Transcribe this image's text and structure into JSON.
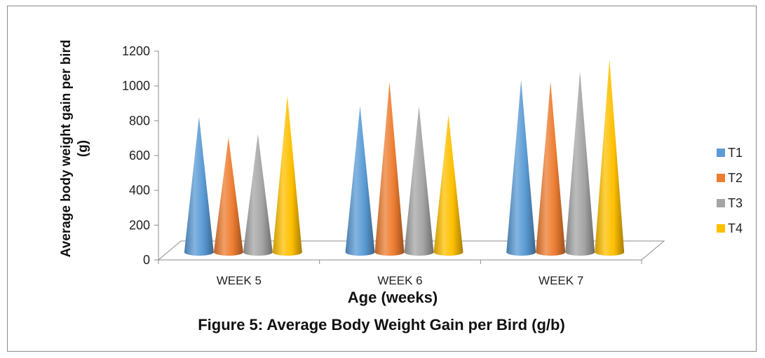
{
  "chart_data": {
    "type": "bar",
    "style": "3d-cone",
    "title": "Figure 5: Average Body Weight Gain per Bird (g/b)",
    "xlabel": "Age (weeks)",
    "ylabel_line1": "Average body weight gain per bird",
    "ylabel_line2": "(g)",
    "categories": [
      "WEEK 5",
      "WEEK 6",
      "WEEK 7"
    ],
    "ylim": [
      0,
      1200
    ],
    "yticks": [
      "0",
      "200",
      "400",
      "600",
      "800",
      "1000",
      "1200"
    ],
    "grid": false,
    "legend_position": "right",
    "series": [
      {
        "name": "T1",
        "color": "#5b9bd5",
        "values": [
          800,
          860,
          1010
        ]
      },
      {
        "name": "T2",
        "color": "#ed7d31",
        "values": [
          680,
          1000,
          1000
        ]
      },
      {
        "name": "T3",
        "color": "#a5a5a5",
        "values": [
          700,
          860,
          1060
        ]
      },
      {
        "name": "T4",
        "color": "#ffc000",
        "values": [
          920,
          810,
          1130
        ]
      }
    ]
  }
}
